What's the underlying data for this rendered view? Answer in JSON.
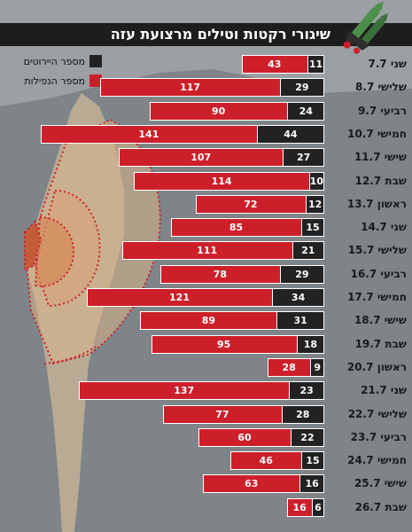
{
  "chart_data": {
    "type": "bar",
    "title": "שיגורי רקטות וטילים מרצועת עזה",
    "legend": [
      {
        "label": "מספר היירוטים",
        "color": "#222222"
      },
      {
        "label": "מספר הנפילות",
        "color": "#cc1f2a"
      }
    ],
    "legend_position": "top-left",
    "orientation": "horizontal",
    "categories": [
      "שני 7.7",
      "שלישי 8.7",
      "רביעי 9.7",
      "חמישי 10.7",
      "שישי 11.7",
      "שבת 12.7",
      "ראשון 13.7",
      "שני 14.7",
      "שלישי 15.7",
      "רביעי 16.7",
      "חמישי 17.7",
      "שישי 18.7",
      "שבת 19.7",
      "ראשון 20.7",
      "שני 21.7",
      "שלישי 22.7",
      "רביעי 23.7",
      "חמישי 24.7",
      "שישי 25.7",
      "שבת 26.7"
    ],
    "series": [
      {
        "name": "מספר היירוטים",
        "color": "#222222",
        "values": [
          11,
          29,
          24,
          44,
          27,
          10,
          12,
          15,
          21,
          29,
          34,
          31,
          18,
          9,
          23,
          28,
          22,
          15,
          16,
          6
        ]
      },
      {
        "name": "מספר הנפילות",
        "color": "#cc1f2a",
        "values": [
          43,
          117,
          90,
          141,
          107,
          114,
          72,
          85,
          111,
          78,
          121,
          89,
          95,
          28,
          137,
          77,
          60,
          46,
          63,
          16
        ]
      }
    ]
  },
  "colors": {
    "background": "#9aa0a4",
    "title_bar": "#1d1d1d",
    "falls": "#cc1f2a",
    "interceptions": "#222222"
  },
  "icons": [
    "rocket-icon",
    "israel-map-icon"
  ]
}
